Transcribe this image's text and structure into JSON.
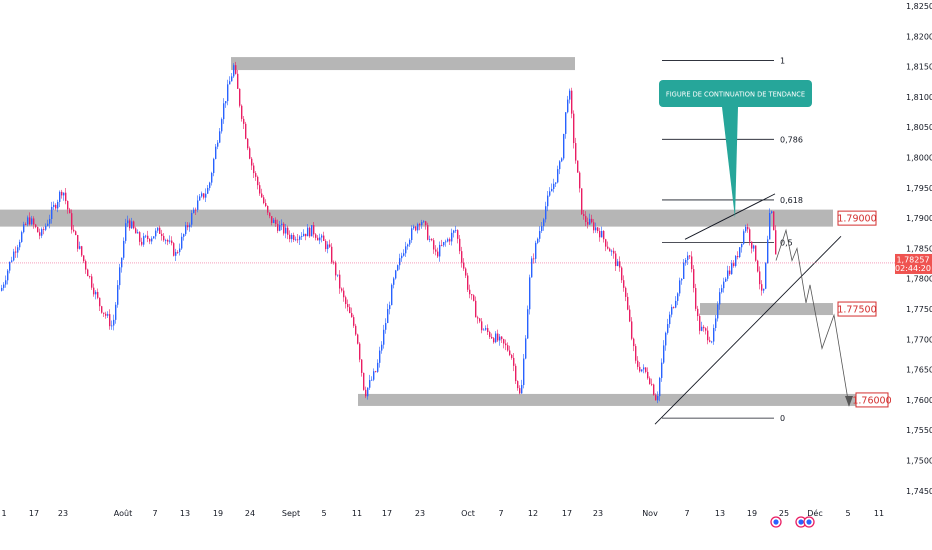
{
  "chart_data": {
    "type": "candlestick",
    "ylim": [
      1.7425,
      1.825
    ],
    "y_ticks": [
      "1,82500",
      "1,82000",
      "1,81500",
      "1,81000",
      "1,80500",
      "1,80000",
      "1,79500",
      "1,79000",
      "1,78500",
      "1,78000",
      "1,77500",
      "1,77000",
      "1,76500",
      "1,76000",
      "1,75500",
      "1,75000",
      "1,74500"
    ],
    "x_ticks": [
      "1",
      "17",
      "23",
      "Août",
      "7",
      "13",
      "19",
      "24",
      "Sept",
      "5",
      "11",
      "17",
      "23",
      "Oct",
      "7",
      "12",
      "17",
      "23",
      "Nov",
      "7",
      "13",
      "19",
      "25",
      "Déc",
      "5",
      "11"
    ],
    "levels": [
      {
        "label": "1.79000",
        "value": 1.79
      },
      {
        "label": "1.77500",
        "value": 1.775
      },
      {
        "label": "1.76000",
        "value": 1.76
      }
    ],
    "resistance_zone_top": {
      "value": 1.8155
    },
    "fibonacci": [
      {
        "label": "1",
        "value": 1.816
      },
      {
        "label": "0,786",
        "value": 1.803
      },
      {
        "label": "0,618",
        "value": 1.793
      },
      {
        "label": "0,5",
        "value": 1.786
      },
      {
        "label": "0",
        "value": 1.757
      }
    ],
    "current_price": {
      "value": "1,78257",
      "countdown": "02:44:20",
      "y": 1.7826
    },
    "annotation": "FIGURE DE CONTINUATION DE TENDANCE",
    "colors": {
      "up": "#2962ff",
      "down": "#e91e63",
      "zone": "#9e9e9e",
      "callout": "#26a69a",
      "level": "#d32f2f"
    }
  }
}
